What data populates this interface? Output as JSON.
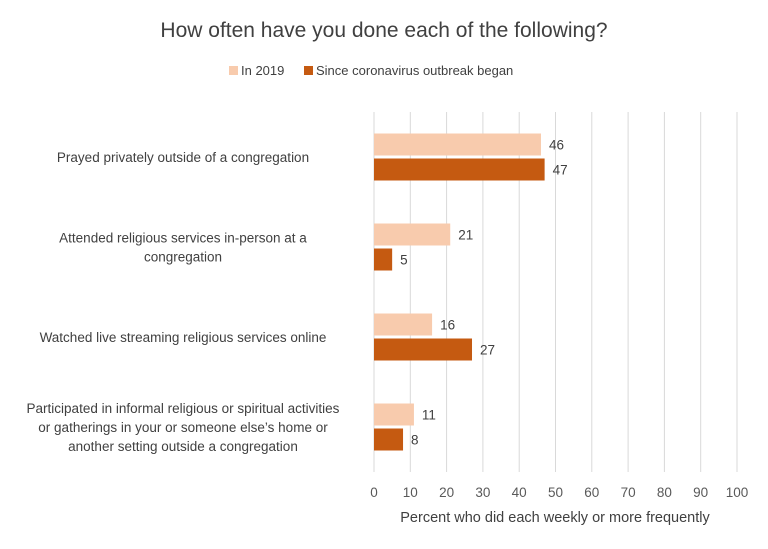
{
  "chart_data": {
    "type": "bar",
    "orientation": "horizontal",
    "title": "How often have you done each of the following?",
    "categories": [
      [
        "Prayed privately outside of a congregation"
      ],
      [
        "Attended religious services in-person at a",
        "congregation"
      ],
      [
        "Watched live streaming religious services online"
      ],
      [
        "Participated in informal religious or spiritual activities",
        "or gatherings in your or someone else’s home or",
        "another setting outside a congregation"
      ]
    ],
    "series": [
      {
        "name": "In 2019",
        "color": "#f8cbad",
        "values": [
          46,
          21,
          16,
          11
        ]
      },
      {
        "name": "Since coronavirus outbreak began",
        "color": "#c55a11",
        "values": [
          47,
          5,
          27,
          8
        ]
      }
    ],
    "xlabel": "Percent who did each weekly or more frequently",
    "xlim": [
      0,
      100
    ],
    "xticks": [
      0,
      10,
      20,
      30,
      40,
      50,
      60,
      70,
      80,
      90,
      100
    ],
    "grid": true,
    "legend_position": "top"
  }
}
